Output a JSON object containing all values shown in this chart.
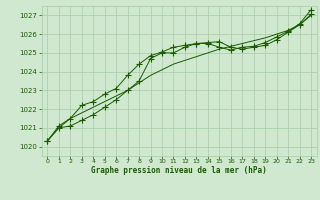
{
  "background_color": "#cfe8cf",
  "grid_color": "#a8cca8",
  "line_color": "#1a5c00",
  "marker_color": "#1a5c00",
  "title": "Graphe pression niveau de la mer (hPa)",
  "xlim": [
    -0.5,
    23.5
  ],
  "ylim": [
    1019.5,
    1027.5
  ],
  "xticks": [
    0,
    1,
    2,
    3,
    4,
    5,
    6,
    7,
    8,
    9,
    10,
    11,
    12,
    13,
    14,
    15,
    16,
    17,
    18,
    19,
    20,
    21,
    22,
    23
  ],
  "yticks": [
    1020,
    1021,
    1022,
    1023,
    1024,
    1025,
    1026,
    1027
  ],
  "line1_x": [
    0,
    1,
    2,
    3,
    4,
    5,
    6,
    7,
    8,
    9,
    10,
    11,
    12,
    13,
    14,
    15,
    16,
    17,
    18,
    19,
    20,
    21,
    22,
    23
  ],
  "line1_y": [
    1020.3,
    1021.0,
    1021.1,
    1021.4,
    1021.7,
    1022.1,
    1022.5,
    1023.0,
    1023.5,
    1024.7,
    1025.0,
    1025.0,
    1025.3,
    1025.5,
    1025.55,
    1025.6,
    1025.3,
    1025.2,
    1025.3,
    1025.4,
    1025.7,
    1026.1,
    1026.5,
    1027.05
  ],
  "line2_x": [
    0,
    1,
    2,
    3,
    4,
    5,
    6,
    7,
    8,
    9,
    10,
    11,
    12,
    13,
    14,
    15,
    16,
    17,
    18,
    19,
    20,
    21,
    22,
    23
  ],
  "line2_y": [
    1020.3,
    1021.0,
    1021.5,
    1021.8,
    1022.1,
    1022.4,
    1022.7,
    1023.0,
    1023.4,
    1023.8,
    1024.1,
    1024.4,
    1024.6,
    1024.8,
    1025.0,
    1025.2,
    1025.35,
    1025.5,
    1025.65,
    1025.8,
    1026.0,
    1026.2,
    1026.5,
    1027.0
  ],
  "line3_x": [
    0,
    1,
    2,
    3,
    4,
    5,
    6,
    7,
    8,
    9,
    10,
    11,
    12,
    13,
    14,
    15,
    16,
    17,
    18,
    19,
    20,
    21,
    22,
    23
  ],
  "line3_y": [
    1020.3,
    1021.1,
    1021.5,
    1022.2,
    1022.4,
    1022.8,
    1023.1,
    1023.8,
    1024.4,
    1024.85,
    1025.05,
    1025.3,
    1025.4,
    1025.5,
    1025.5,
    1025.3,
    1025.15,
    1025.3,
    1025.35,
    1025.55,
    1025.85,
    1026.15,
    1026.55,
    1027.3
  ]
}
